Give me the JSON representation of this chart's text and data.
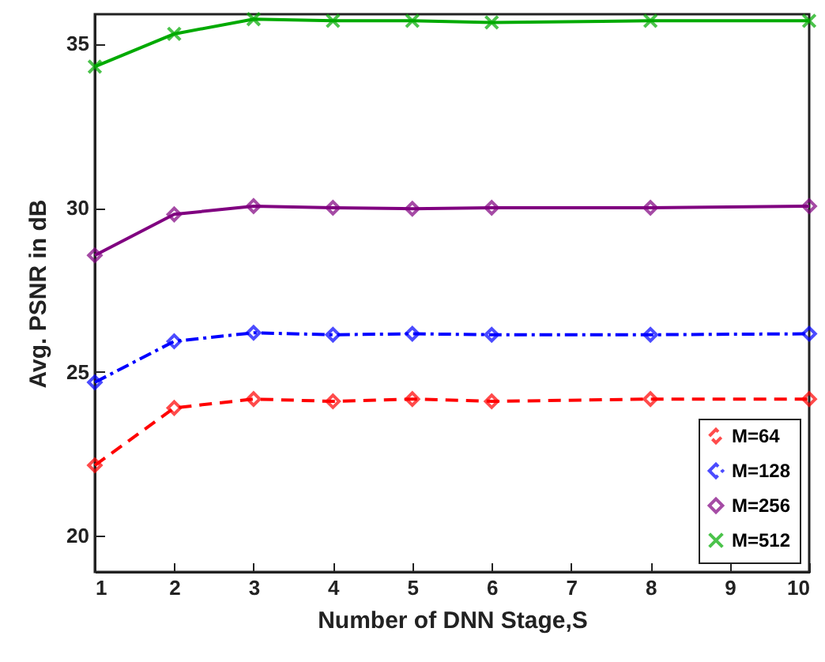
{
  "chart_data": {
    "type": "line",
    "xlabel": "Number of DNN Stage,S",
    "ylabel": "Avg. PSNR in dB",
    "x": [
      1,
      2,
      3,
      4,
      5,
      6,
      8,
      10
    ],
    "xlim": [
      1,
      10
    ],
    "xticks": [
      1,
      2,
      3,
      4,
      5,
      6,
      7,
      8,
      9,
      10
    ],
    "ylim": [
      18.9,
      35.9
    ],
    "yticks": [
      20,
      25,
      30,
      35
    ],
    "grid": false,
    "legend": "bottom right",
    "series": [
      {
        "name": "M=64",
        "color": "#ff0000",
        "line_style": "dashed",
        "marker": "diamond",
        "values": [
          22.15,
          23.9,
          24.17,
          24.1,
          24.17,
          24.1,
          24.17,
          24.17
        ]
      },
      {
        "name": "M=128",
        "color": "#0000ff",
        "line_style": "dashdot",
        "marker": "diamond",
        "values": [
          24.68,
          25.93,
          26.19,
          26.13,
          26.16,
          26.13,
          26.13,
          26.16
        ]
      },
      {
        "name": "M=256",
        "color": "#800080",
        "line_style": "solid",
        "marker": "diamond",
        "values": [
          28.55,
          29.8,
          30.05,
          30.0,
          29.97,
          30.0,
          30.0,
          30.05
        ]
      },
      {
        "name": "M=512",
        "color": "#00aa00",
        "line_style": "solid",
        "marker": "cross",
        "values": [
          34.3,
          35.3,
          35.75,
          35.7,
          35.7,
          35.65,
          35.7,
          35.7
        ]
      }
    ]
  }
}
